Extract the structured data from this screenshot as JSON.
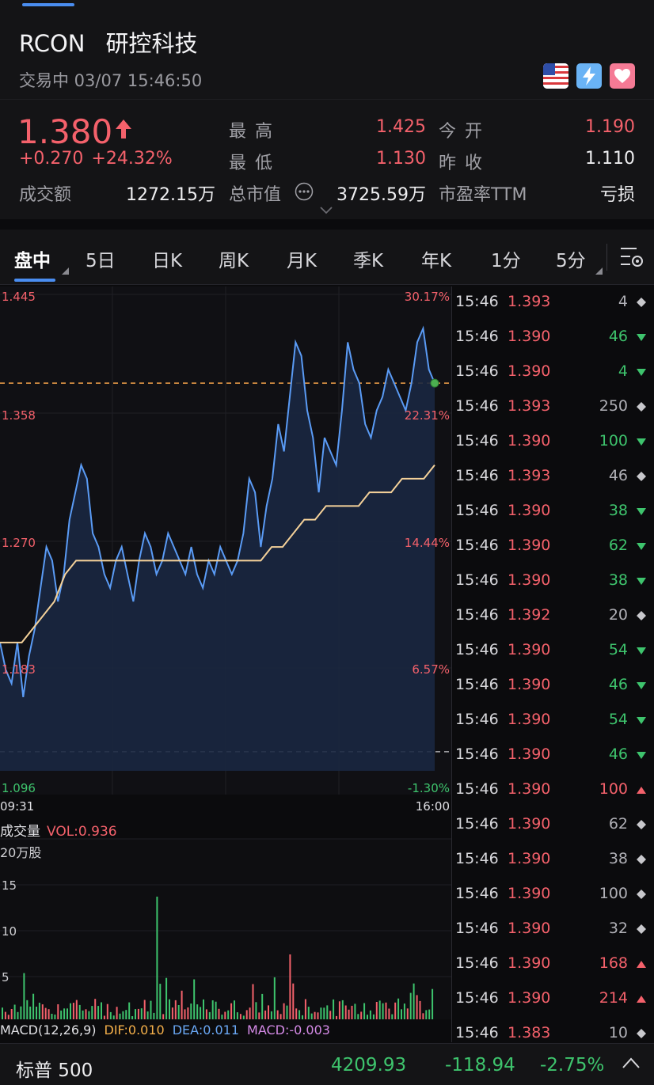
{
  "header": {
    "symbol": "RCON",
    "name": "研控科技",
    "status": "交易中 03/07 15:46:50",
    "icons": [
      "us-flag-icon",
      "lightning-icon",
      "heart-icon"
    ]
  },
  "quote": {
    "price": "1.380",
    "change": "+0.270",
    "change_pct": "+24.32%",
    "high_label": "最 高",
    "high": "1.425",
    "open_label": "今 开",
    "open": "1.190",
    "low_label": "最 低",
    "low": "1.130",
    "prev_close_label": "昨 收",
    "prev_close": "1.110",
    "turnover_label": "成交额",
    "turnover": "1272.15万",
    "mktcap_label": "总市值",
    "mktcap": "3725.59万",
    "pe_label": "市盈率TTM",
    "pe": "亏损"
  },
  "tabs": [
    "盘中",
    "5日",
    "日K",
    "周K",
    "月K",
    "季K",
    "年K",
    "1分",
    "5分"
  ],
  "chart": {
    "price_labels": [
      "1.445",
      "1.358",
      "1.270",
      "1.183",
      "1.096"
    ],
    "pct_labels": [
      "30.17%",
      "22.31%",
      "14.44%",
      "6.57%",
      "-1.30%"
    ],
    "time_start": "09:31",
    "time_end": "16:00",
    "vol_title": "成交量",
    "vol_value": "VOL:0.936",
    "vol_unit": "20万股",
    "vol_ticks": [
      "15",
      "10",
      "5"
    ],
    "macd_label": "MACD(12,26,9)",
    "dif": "DIF:0.010",
    "dea": "DEA:0.011",
    "macd": "MACD:-0.003",
    "colors": {
      "price_line": "#5a9bf5",
      "avg_line": "#f5d29a",
      "up": "#f4616b",
      "down": "#3ec46d",
      "fill": "#1a2740"
    }
  },
  "chart_data": {
    "type": "line",
    "title": "",
    "x_range": [
      "09:31",
      "16:00"
    ],
    "ylim": [
      1.096,
      1.445
    ],
    "prev_close": 1.11,
    "current": 1.38,
    "series": [
      {
        "name": "",
        "values": [
          1.19,
          1.17,
          1.16,
          1.19,
          1.15,
          1.18,
          1.2,
          1.23,
          1.26,
          1.25,
          1.22,
          1.24,
          1.28,
          1.3,
          1.32,
          1.31,
          1.27,
          1.26,
          1.24,
          1.23,
          1.25,
          1.26,
          1.24,
          1.22,
          1.25,
          1.27,
          1.26,
          1.24,
          1.25,
          1.27,
          1.26,
          1.25,
          1.24,
          1.26,
          1.24,
          1.23,
          1.25,
          1.24,
          1.26,
          1.25,
          1.24,
          1.25,
          1.27,
          1.31,
          1.3,
          1.26,
          1.29,
          1.31,
          1.35,
          1.33,
          1.37,
          1.41,
          1.4,
          1.36,
          1.34,
          1.3,
          1.34,
          1.33,
          1.32,
          1.36,
          1.41,
          1.39,
          1.38,
          1.35,
          1.34,
          1.36,
          1.37,
          1.39,
          1.38,
          1.37,
          1.36,
          1.38,
          1.41,
          1.42,
          1.39,
          1.38
        ]
      },
      {
        "name": "",
        "values": [
          1.19,
          1.19,
          1.19,
          1.2,
          1.21,
          1.22,
          1.24,
          1.25,
          1.25,
          1.25,
          1.25,
          1.25,
          1.25,
          1.25,
          1.25,
          1.25,
          1.25,
          1.25,
          1.25,
          1.25,
          1.25,
          1.25,
          1.25,
          1.25,
          1.25,
          1.26,
          1.26,
          1.27,
          1.28,
          1.28,
          1.29,
          1.29,
          1.29,
          1.29,
          1.3,
          1.3,
          1.3,
          1.31,
          1.31,
          1.31,
          1.32
        ]
      }
    ]
  },
  "ticks": [
    {
      "time": "15:46",
      "price": "1.393",
      "qty": "4",
      "dir": "neutral"
    },
    {
      "time": "15:46",
      "price": "1.390",
      "qty": "46",
      "dir": "down"
    },
    {
      "time": "15:46",
      "price": "1.390",
      "qty": "4",
      "dir": "down"
    },
    {
      "time": "15:46",
      "price": "1.393",
      "qty": "250",
      "dir": "neutral"
    },
    {
      "time": "15:46",
      "price": "1.390",
      "qty": "100",
      "dir": "down"
    },
    {
      "time": "15:46",
      "price": "1.393",
      "qty": "46",
      "dir": "neutral"
    },
    {
      "time": "15:46",
      "price": "1.390",
      "qty": "38",
      "dir": "down"
    },
    {
      "time": "15:46",
      "price": "1.390",
      "qty": "62",
      "dir": "down"
    },
    {
      "time": "15:46",
      "price": "1.390",
      "qty": "38",
      "dir": "down"
    },
    {
      "time": "15:46",
      "price": "1.392",
      "qty": "20",
      "dir": "neutral"
    },
    {
      "time": "15:46",
      "price": "1.390",
      "qty": "54",
      "dir": "down"
    },
    {
      "time": "15:46",
      "price": "1.390",
      "qty": "46",
      "dir": "down"
    },
    {
      "time": "15:46",
      "price": "1.390",
      "qty": "54",
      "dir": "down"
    },
    {
      "time": "15:46",
      "price": "1.390",
      "qty": "46",
      "dir": "down"
    },
    {
      "time": "15:46",
      "price": "1.390",
      "qty": "100",
      "dir": "up"
    },
    {
      "time": "15:46",
      "price": "1.390",
      "qty": "62",
      "dir": "neutral"
    },
    {
      "time": "15:46",
      "price": "1.390",
      "qty": "38",
      "dir": "neutral"
    },
    {
      "time": "15:46",
      "price": "1.390",
      "qty": "100",
      "dir": "neutral"
    },
    {
      "time": "15:46",
      "price": "1.390",
      "qty": "32",
      "dir": "neutral"
    },
    {
      "time": "15:46",
      "price": "1.390",
      "qty": "168",
      "dir": "up"
    },
    {
      "time": "15:46",
      "price": "1.390",
      "qty": "214",
      "dir": "up"
    },
    {
      "time": "15:46",
      "price": "1.383",
      "qty": "10",
      "dir": "neutral"
    }
  ],
  "footer": {
    "index_name": "标普 500",
    "index_value": "4209.93",
    "index_change": "-118.94",
    "index_pct": "-2.75%"
  }
}
